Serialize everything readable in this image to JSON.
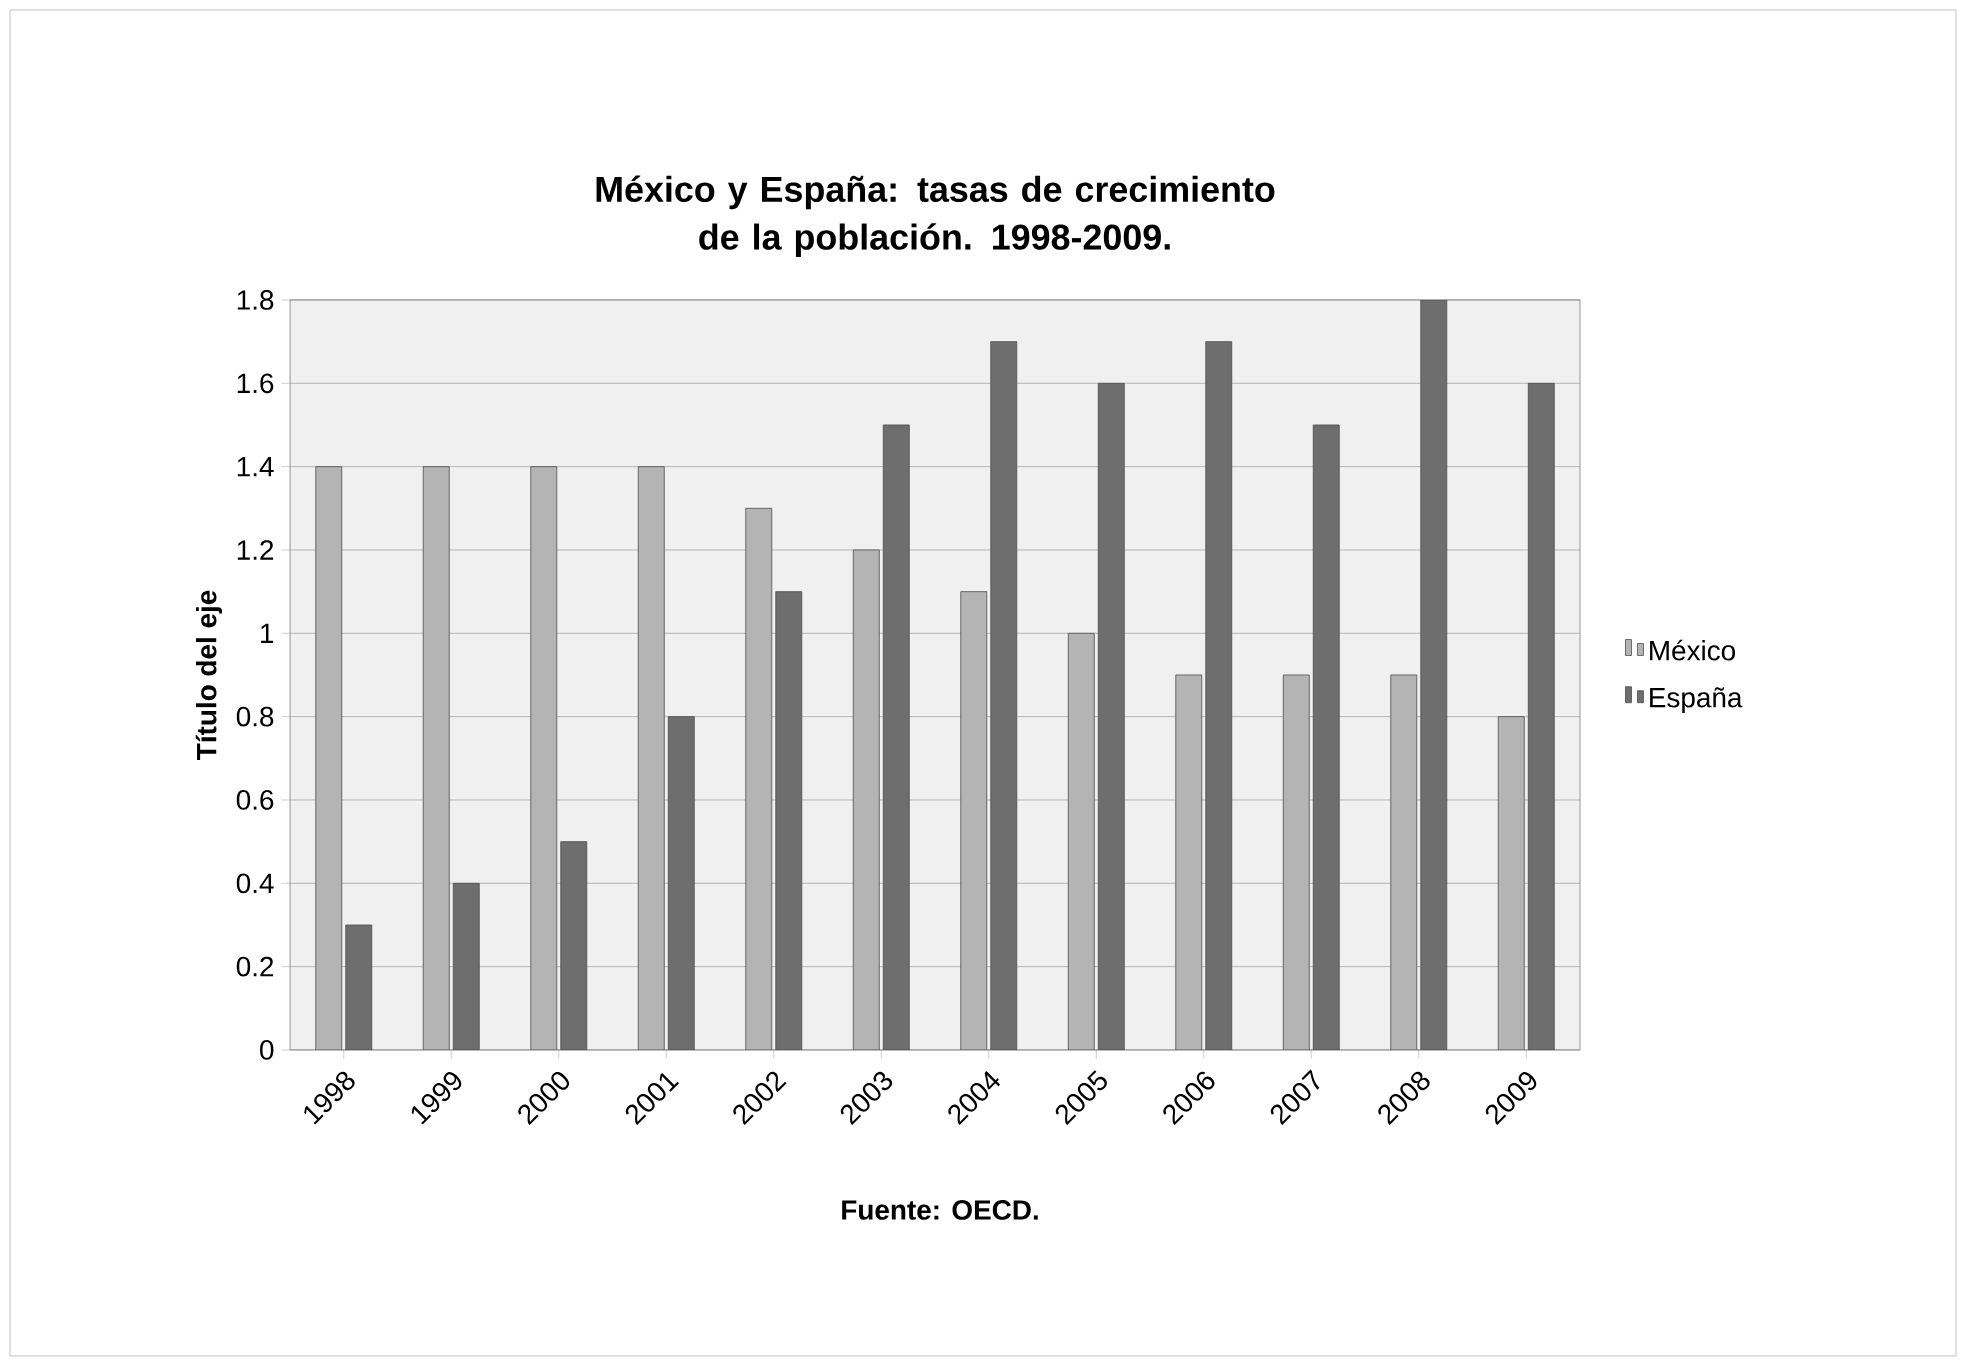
{
  "chart_data": {
    "type": "bar",
    "title": "México y España: tasas de crecimiento de la población. 1998-2009.",
    "ylabel": "Título del eje",
    "annotations": [
      "Fuente: OECD."
    ],
    "categories": [
      "1998",
      "1999",
      "2000",
      "2001",
      "2002",
      "2003",
      "2004",
      "2005",
      "2006",
      "2007",
      "2008",
      "2009"
    ],
    "series": [
      {
        "name": "México",
        "color": "#b4b4b4",
        "values": [
          1.4,
          1.4,
          1.4,
          1.4,
          1.3,
          1.2,
          1.1,
          1.0,
          0.9,
          0.9,
          0.9,
          0.8
        ]
      },
      {
        "name": "España",
        "color": "#6e6e6e",
        "values": [
          0.3,
          0.4,
          0.5,
          0.8,
          1.1,
          1.5,
          1.7,
          1.6,
          1.7,
          1.5,
          1.8,
          1.6
        ]
      }
    ],
    "ylim": [
      0,
      1.8
    ],
    "yticks": [
      0,
      0.2,
      0.4,
      0.6,
      0.8,
      1,
      1.2,
      1.4,
      1.6,
      1.8
    ],
    "grid": "y",
    "legend": "right"
  }
}
